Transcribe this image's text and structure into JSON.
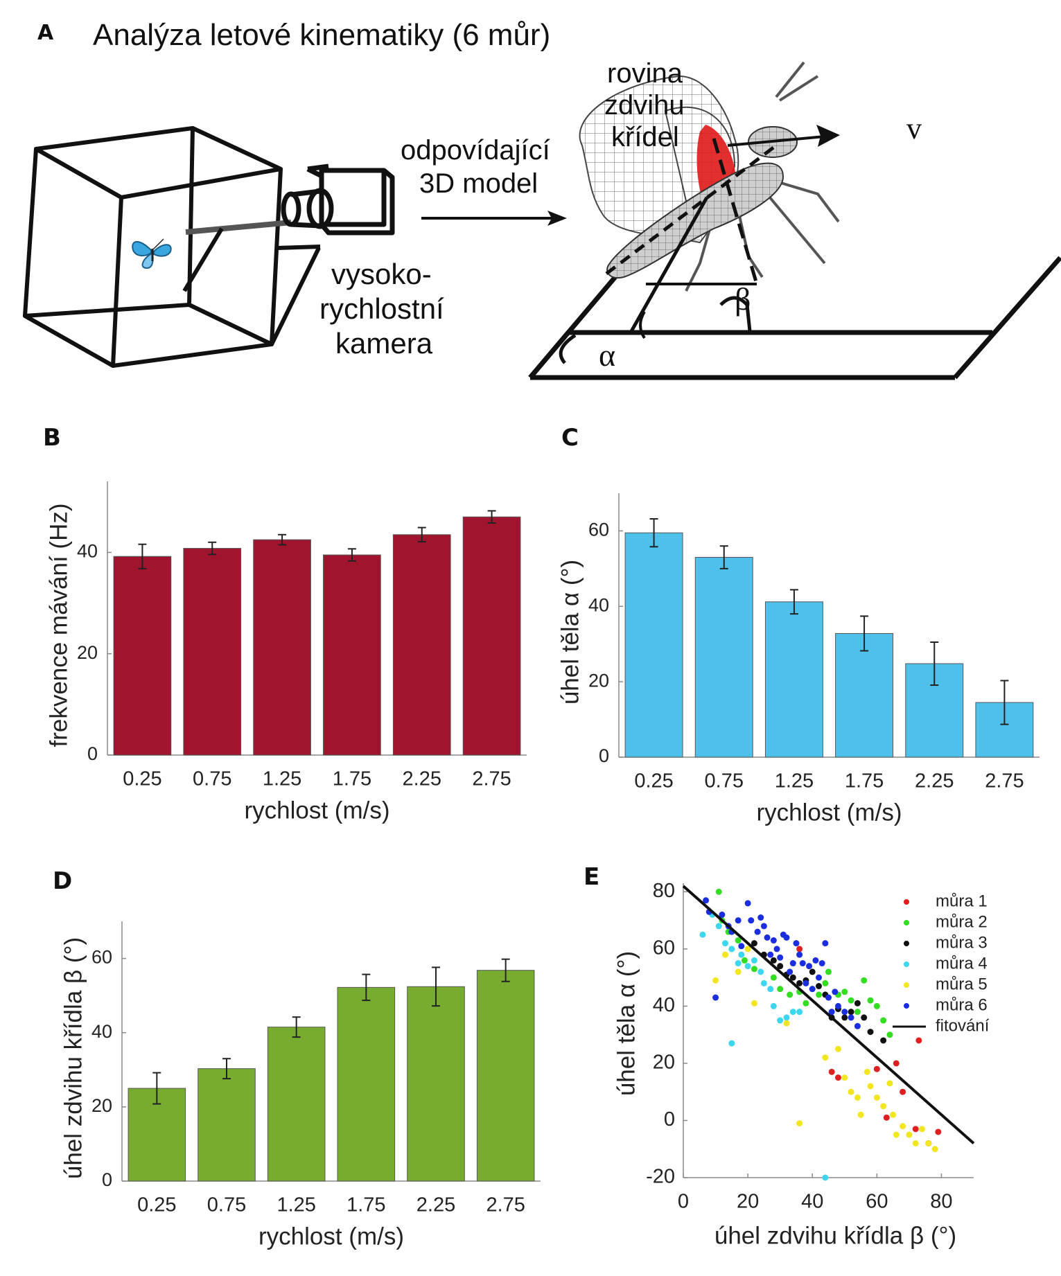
{
  "panelA": {
    "letter": "A",
    "title": "Analýza letové kinematiky (6 můr)",
    "model_label_1": "odpovídající",
    "model_label_2": "3D model",
    "camera_label_1": "vysoko-",
    "camera_label_2": "rychlostní",
    "camera_label_3": "kamera",
    "plane_label_1": "rovina",
    "plane_label_2": "zdvihu",
    "plane_label_3": "křídel",
    "velocity_symbol": "v",
    "alpha_symbol": "α",
    "beta_symbol": "β",
    "icons": [
      "box-arena-icon",
      "butterfly-icon",
      "camera-icon",
      "moth-model-icon"
    ],
    "colors": {
      "stroke_plane": "#e01818",
      "butterfly": "#3aa6e0"
    }
  },
  "chart_data": [
    {
      "panel": "B",
      "type": "bar",
      "categories": [
        "0.25",
        "0.75",
        "1.25",
        "1.75",
        "2.25",
        "2.75"
      ],
      "values": [
        39.2,
        40.8,
        42.5,
        39.5,
        43.5,
        47.0
      ],
      "errors": [
        2.4,
        1.2,
        1.0,
        1.2,
        1.4,
        1.2
      ],
      "xlabel": "rychlost (m/s)",
      "ylabel": "frekvence mávání (Hz)",
      "ylim": [
        0,
        54
      ],
      "yticks": [
        0,
        20,
        40
      ],
      "color": "#a0142e"
    },
    {
      "panel": "C",
      "type": "bar",
      "categories": [
        "0.25",
        "0.75",
        "1.25",
        "1.75",
        "2.25",
        "2.75"
      ],
      "values": [
        59.5,
        53.0,
        41.2,
        32.8,
        24.8,
        14.5
      ],
      "errors": [
        3.7,
        3.0,
        3.2,
        4.6,
        5.7,
        5.8
      ],
      "xlabel": "rychlost (m/s)",
      "ylabel": "úhel těla α (°)",
      "ylim": [
        0,
        70
      ],
      "yticks": [
        0,
        20,
        40,
        60
      ],
      "color": "#4fc0ea"
    },
    {
      "panel": "D",
      "type": "bar",
      "categories": [
        "0.25",
        "0.75",
        "1.25",
        "1.75",
        "2.25",
        "2.75"
      ],
      "values": [
        25.0,
        30.3,
        41.5,
        52.2,
        52.4,
        56.8
      ],
      "errors": [
        4.2,
        2.7,
        2.7,
        3.5,
        5.2,
        3.0
      ],
      "xlabel": "rychlost (m/s)",
      "ylabel": "úhel zdvihu křídla β (°)",
      "ylim": [
        0,
        70
      ],
      "yticks": [
        0,
        20,
        40,
        60
      ],
      "color": "#78ac30"
    },
    {
      "panel": "E",
      "type": "scatter",
      "xlabel": "úhel zdvihu křídla β (°)",
      "ylabel": "úhel těla α (°)",
      "xlim": [
        0,
        90
      ],
      "ylim": [
        -20,
        83
      ],
      "xticks": [
        0,
        20,
        40,
        60,
        80
      ],
      "yticks": [
        -20,
        0,
        20,
        40,
        60,
        80
      ],
      "legend_position": "top-right",
      "series": [
        {
          "name": "můra 1",
          "color": "#e02020",
          "points": [
            [
              36,
              60
            ],
            [
              46,
              17
            ],
            [
              48,
              15
            ],
            [
              60,
              18
            ],
            [
              63,
              1
            ],
            [
              66,
              20
            ],
            [
              68,
              10
            ],
            [
              72,
              -3
            ],
            [
              73,
              28
            ],
            [
              76,
              -8
            ],
            [
              79,
              -4
            ]
          ]
        },
        {
          "name": "můra 2",
          "color": "#33dd22",
          "points": [
            [
              11,
              80
            ],
            [
              12,
              70
            ],
            [
              14,
              66
            ],
            [
              17,
              63
            ],
            [
              19,
              56
            ],
            [
              22,
              53
            ],
            [
              28,
              50
            ],
            [
              30,
              46
            ],
            [
              33,
              44
            ],
            [
              36,
              45
            ],
            [
              38,
              41
            ],
            [
              40,
              46
            ],
            [
              42,
              44
            ],
            [
              44,
              48
            ],
            [
              45,
              52
            ],
            [
              48,
              44
            ],
            [
              50,
              45
            ],
            [
              52,
              42
            ],
            [
              54,
              38
            ],
            [
              56,
              49
            ],
            [
              58,
              42
            ],
            [
              60,
              40
            ],
            [
              62,
              35
            ],
            [
              64,
              30
            ]
          ]
        },
        {
          "name": "můra 3",
          "color": "#111111",
          "points": [
            [
              22,
              62
            ],
            [
              25,
              58
            ],
            [
              28,
              56
            ],
            [
              30,
              54
            ],
            [
              32,
              51
            ],
            [
              34,
              50
            ],
            [
              36,
              48
            ],
            [
              38,
              49
            ],
            [
              40,
              52
            ],
            [
              42,
              47
            ],
            [
              44,
              44
            ],
            [
              46,
              36
            ],
            [
              48,
              39
            ],
            [
              50,
              36
            ],
            [
              52,
              38
            ],
            [
              54,
              41
            ],
            [
              56,
              36
            ],
            [
              58,
              31
            ],
            [
              62,
              28
            ]
          ]
        },
        {
          "name": "můra 4",
          "color": "#3cd6ee",
          "points": [
            [
              6,
              65
            ],
            [
              9,
              72
            ],
            [
              11,
              68
            ],
            [
              13,
              62
            ],
            [
              15,
              60
            ],
            [
              17,
              55
            ],
            [
              18,
              58
            ],
            [
              20,
              54
            ],
            [
              22,
              56
            ],
            [
              24,
              52
            ],
            [
              25,
              48
            ],
            [
              27,
              46
            ],
            [
              28,
              40
            ],
            [
              30,
              35
            ],
            [
              32,
              36
            ],
            [
              34,
              38
            ],
            [
              36,
              38
            ],
            [
              15,
              27
            ],
            [
              44,
              -20
            ]
          ]
        },
        {
          "name": "můra 5",
          "color": "#f2e620",
          "points": [
            [
              10,
              49
            ],
            [
              13,
              58
            ],
            [
              17,
              52
            ],
            [
              20,
              60
            ],
            [
              22,
              41
            ],
            [
              32,
              34
            ],
            [
              36,
              -1
            ],
            [
              44,
              22
            ],
            [
              48,
              25
            ],
            [
              50,
              15
            ],
            [
              52,
              10
            ],
            [
              54,
              8
            ],
            [
              55,
              2
            ],
            [
              57,
              17
            ],
            [
              58,
              12
            ],
            [
              60,
              8
            ],
            [
              62,
              5
            ],
            [
              64,
              13
            ],
            [
              65,
              2
            ],
            [
              66,
              -5
            ],
            [
              68,
              -2
            ],
            [
              70,
              -5
            ],
            [
              72,
              -8
            ],
            [
              74,
              -3
            ],
            [
              76,
              -8
            ],
            [
              78,
              -10
            ]
          ]
        },
        {
          "name": "můra 6",
          "color": "#1a2ee0",
          "points": [
            [
              7,
              77
            ],
            [
              8,
              73
            ],
            [
              10,
              43
            ],
            [
              12,
              72
            ],
            [
              14,
              68
            ],
            [
              15,
              66
            ],
            [
              17,
              70
            ],
            [
              18,
              61
            ],
            [
              20,
              76
            ],
            [
              21,
              70
            ],
            [
              23,
              66
            ],
            [
              24,
              71
            ],
            [
              25,
              68
            ],
            [
              26,
              64
            ],
            [
              27,
              58
            ],
            [
              28,
              63
            ],
            [
              29,
              60
            ],
            [
              30,
              57
            ],
            [
              31,
              65
            ],
            [
              32,
              64
            ],
            [
              33,
              52
            ],
            [
              34,
              55
            ],
            [
              35,
              62
            ],
            [
              36,
              58
            ],
            [
              37,
              55
            ],
            [
              38,
              48
            ],
            [
              39,
              54
            ],
            [
              40,
              46
            ],
            [
              41,
              56
            ],
            [
              42,
              50
            ],
            [
              43,
              55
            ],
            [
              44,
              62
            ],
            [
              45,
              43
            ],
            [
              46,
              38
            ],
            [
              47,
              45
            ],
            [
              48,
              40
            ],
            [
              50,
              38
            ],
            [
              52,
              36
            ],
            [
              54,
              33
            ]
          ]
        }
      ],
      "fit": {
        "name": "fitování",
        "color": "#111111",
        "x1": 0,
        "y1": 82,
        "x2": 90,
        "y2": -8
      }
    }
  ]
}
